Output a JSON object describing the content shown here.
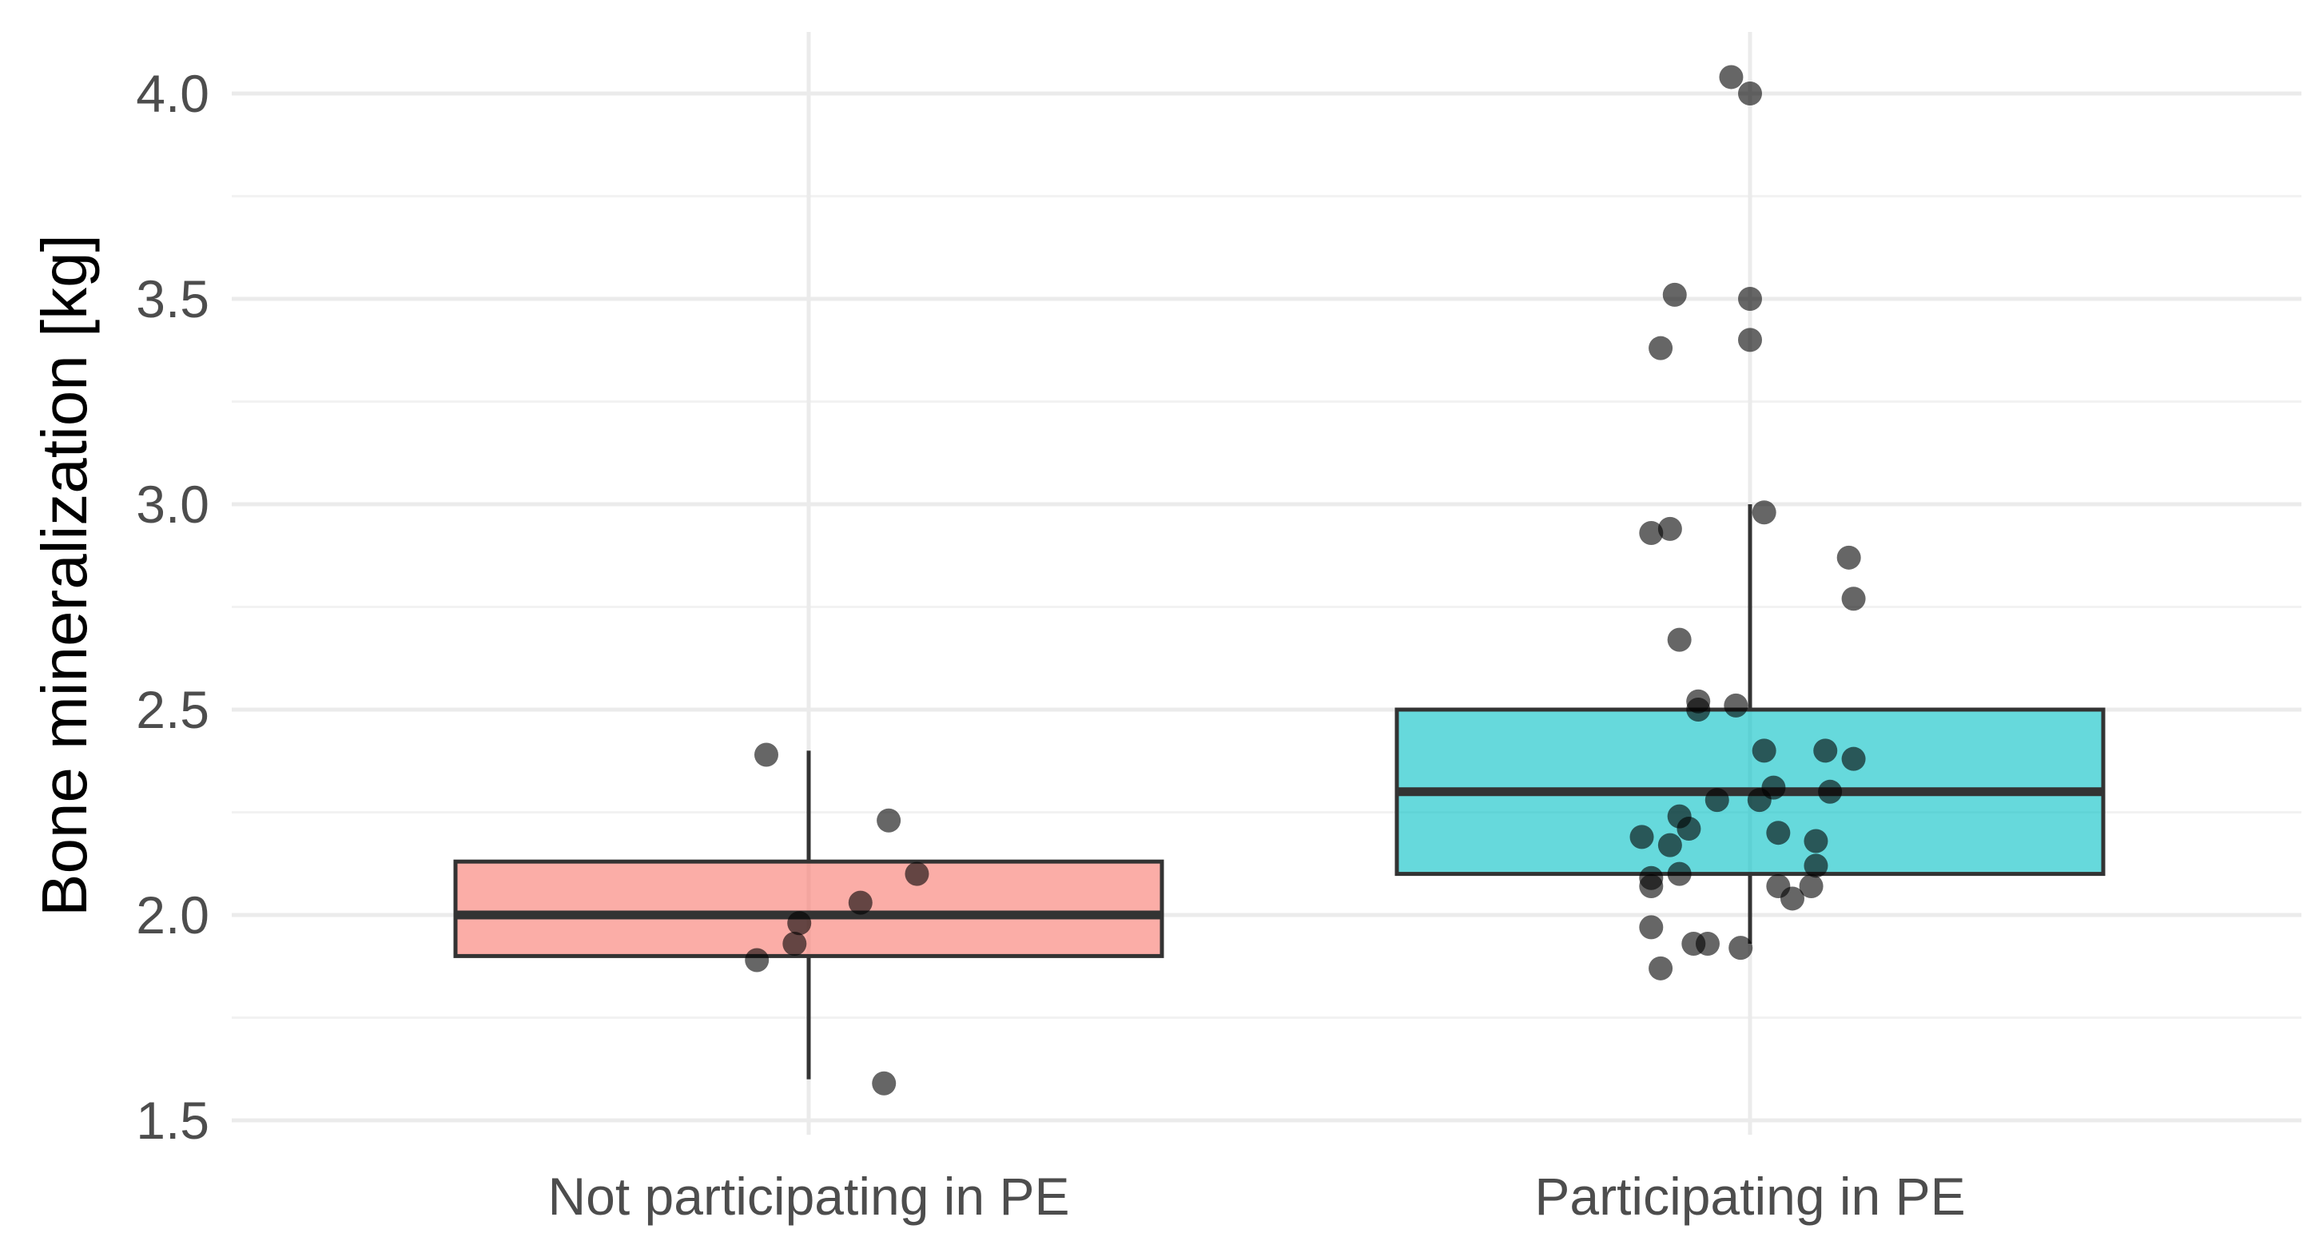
{
  "chart_data": {
    "type": "boxplot",
    "title": "",
    "xlabel": "",
    "ylabel": "Bone mineralization [kg]",
    "ylim": [
      1.45,
      4.15
    ],
    "yticks": [
      1.5,
      2.0,
      2.5,
      3.0,
      3.5,
      4.0
    ],
    "ytick_labels": [
      "1.5",
      "2.0",
      "2.5",
      "3.0",
      "3.5",
      "4.0"
    ],
    "categories": [
      "Not participating in PE",
      "Participating in PE"
    ],
    "grid": true,
    "legend": "none",
    "boxes": [
      {
        "group": "Not participating in PE",
        "color": "#F8766D",
        "whisker_low": 1.6,
        "q1": 1.9,
        "median": 2.0,
        "q3": 2.13,
        "whisker_high": 2.4
      },
      {
        "group": "Participating in PE",
        "color": "#00BFC4",
        "whisker_low": 1.93,
        "q1": 2.1,
        "median": 2.3,
        "q3": 2.5,
        "whisker_high": 3.0
      }
    ],
    "points": [
      {
        "group": "Not participating in PE",
        "jitter": -0.09,
        "y": 2.39
      },
      {
        "group": "Not participating in PE",
        "jitter": 0.17,
        "y": 2.23
      },
      {
        "group": "Not participating in PE",
        "jitter": 0.23,
        "y": 2.1
      },
      {
        "group": "Not participating in PE",
        "jitter": 0.11,
        "y": 2.03
      },
      {
        "group": "Not participating in PE",
        "jitter": -0.02,
        "y": 1.98
      },
      {
        "group": "Not participating in PE",
        "jitter": -0.03,
        "y": 1.93
      },
      {
        "group": "Not participating in PE",
        "jitter": -0.11,
        "y": 1.89
      },
      {
        "group": "Not participating in PE",
        "jitter": 0.16,
        "y": 1.59
      },
      {
        "group": "Participating in PE",
        "jitter": -0.04,
        "y": 4.04
      },
      {
        "group": "Participating in PE",
        "jitter": 0.0,
        "y": 4.0
      },
      {
        "group": "Participating in PE",
        "jitter": -0.16,
        "y": 3.51
      },
      {
        "group": "Participating in PE",
        "jitter": 0.0,
        "y": 3.5
      },
      {
        "group": "Participating in PE",
        "jitter": 0.0,
        "y": 3.4
      },
      {
        "group": "Participating in PE",
        "jitter": -0.19,
        "y": 3.38
      },
      {
        "group": "Participating in PE",
        "jitter": 0.03,
        "y": 2.98
      },
      {
        "group": "Participating in PE",
        "jitter": -0.17,
        "y": 2.94
      },
      {
        "group": "Participating in PE",
        "jitter": -0.21,
        "y": 2.93
      },
      {
        "group": "Participating in PE",
        "jitter": 0.21,
        "y": 2.87
      },
      {
        "group": "Participating in PE",
        "jitter": 0.22,
        "y": 2.77
      },
      {
        "group": "Participating in PE",
        "jitter": -0.15,
        "y": 2.67
      },
      {
        "group": "Participating in PE",
        "jitter": -0.11,
        "y": 2.52
      },
      {
        "group": "Participating in PE",
        "jitter": -0.11,
        "y": 2.5
      },
      {
        "group": "Participating in PE",
        "jitter": -0.03,
        "y": 2.51
      },
      {
        "group": "Participating in PE",
        "jitter": 0.03,
        "y": 2.4
      },
      {
        "group": "Participating in PE",
        "jitter": 0.16,
        "y": 2.4
      },
      {
        "group": "Participating in PE",
        "jitter": 0.22,
        "y": 2.38
      },
      {
        "group": "Participating in PE",
        "jitter": 0.05,
        "y": 2.31
      },
      {
        "group": "Participating in PE",
        "jitter": 0.17,
        "y": 2.3
      },
      {
        "group": "Participating in PE",
        "jitter": 0.02,
        "y": 2.28
      },
      {
        "group": "Participating in PE",
        "jitter": -0.07,
        "y": 2.28
      },
      {
        "group": "Participating in PE",
        "jitter": -0.15,
        "y": 2.24
      },
      {
        "group": "Participating in PE",
        "jitter": -0.13,
        "y": 2.21
      },
      {
        "group": "Participating in PE",
        "jitter": 0.06,
        "y": 2.2
      },
      {
        "group": "Participating in PE",
        "jitter": -0.23,
        "y": 2.19
      },
      {
        "group": "Participating in PE",
        "jitter": -0.17,
        "y": 2.17
      },
      {
        "group": "Participating in PE",
        "jitter": 0.14,
        "y": 2.18
      },
      {
        "group": "Participating in PE",
        "jitter": 0.14,
        "y": 2.12
      },
      {
        "group": "Participating in PE",
        "jitter": -0.15,
        "y": 2.1
      },
      {
        "group": "Participating in PE",
        "jitter": -0.21,
        "y": 2.09
      },
      {
        "group": "Participating in PE",
        "jitter": -0.21,
        "y": 2.07
      },
      {
        "group": "Participating in PE",
        "jitter": 0.06,
        "y": 2.07
      },
      {
        "group": "Participating in PE",
        "jitter": 0.13,
        "y": 2.07
      },
      {
        "group": "Participating in PE",
        "jitter": 0.09,
        "y": 2.04
      },
      {
        "group": "Participating in PE",
        "jitter": -0.21,
        "y": 1.97
      },
      {
        "group": "Participating in PE",
        "jitter": -0.12,
        "y": 1.93
      },
      {
        "group": "Participating in PE",
        "jitter": -0.09,
        "y": 1.93
      },
      {
        "group": "Participating in PE",
        "jitter": -0.02,
        "y": 1.92
      },
      {
        "group": "Participating in PE",
        "jitter": -0.19,
        "y": 1.87
      }
    ]
  }
}
